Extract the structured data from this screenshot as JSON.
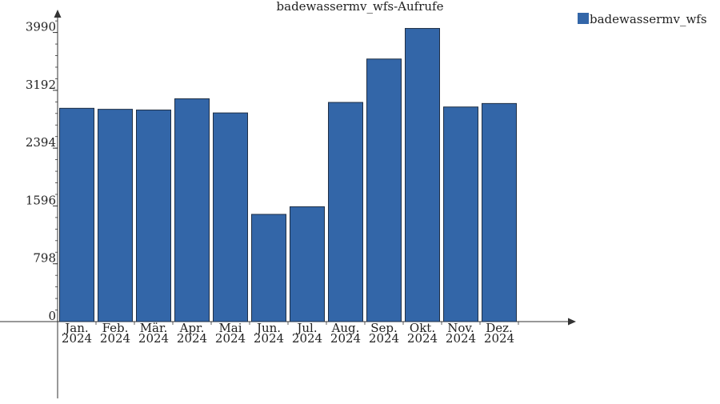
{
  "chart_data": {
    "type": "bar",
    "title": "badewassermv_wfs-Aufrufe",
    "categories": [
      [
        "Jan.",
        "2024"
      ],
      [
        "Feb.",
        "2024"
      ],
      [
        "Mär.",
        "2024"
      ],
      [
        "Apr.",
        "2024"
      ],
      [
        "Mai",
        "2024"
      ],
      [
        "Jun.",
        "2024"
      ],
      [
        "Jul.",
        "2024"
      ],
      [
        "Aug.",
        "2024"
      ],
      [
        "Sep.",
        "2024"
      ],
      [
        "Okt.",
        "2024"
      ],
      [
        "Nov.",
        "2024"
      ],
      [
        "Dez.",
        "2024"
      ]
    ],
    "series": [
      {
        "name": "badewassermv_wfs",
        "values": [
          2944,
          2930,
          2920,
          3075,
          2880,
          1480,
          1585,
          3025,
          3624,
          4046,
          2962,
          3010
        ]
      }
    ],
    "yticks": [
      0,
      798,
      1596,
      2394,
      3192,
      3990
    ],
    "ylim": [
      0,
      4350
    ],
    "xlabel": "",
    "ylabel": "",
    "legend_position": "top-right",
    "grid": false,
    "colors": {
      "bar": "#3366a8",
      "bar_stroke": "#1f2f45",
      "axis": "#333333"
    }
  }
}
